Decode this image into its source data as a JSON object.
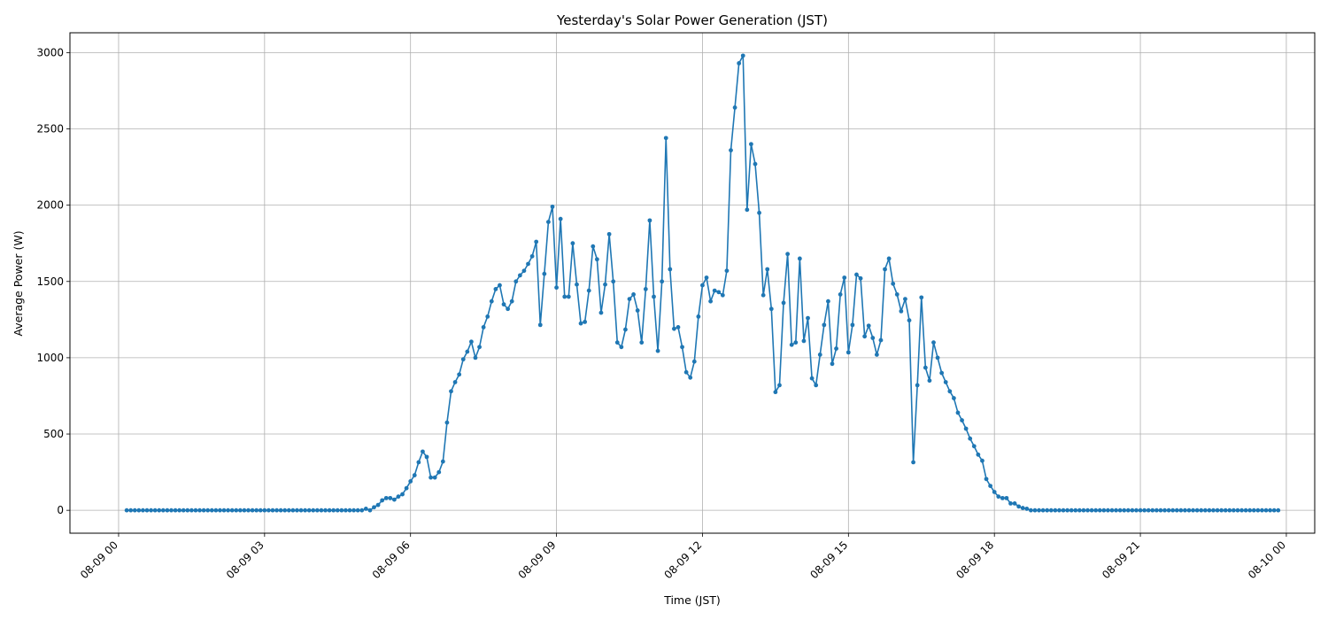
{
  "chart_data": {
    "type": "line",
    "title": "Yesterday's Solar Power Generation (JST)",
    "xlabel": "Time (JST)",
    "ylabel": "Average Power (W)",
    "x_start": "08-09 00:10",
    "x_interval_minutes": 5,
    "x_tick_labels": [
      "08-09 00",
      "08-09 03",
      "08-09 06",
      "08-09 09",
      "08-09 12",
      "08-09 15",
      "08-09 18",
      "08-09 21",
      "08-10 00"
    ],
    "y_ticks": [
      0,
      500,
      1000,
      1500,
      2000,
      2500,
      3000
    ],
    "xlim": [
      "08-08 23:00",
      "08-10 00:35"
    ],
    "ylim": [
      -150,
      3130
    ],
    "grid": true,
    "color": "#1f77b4",
    "series": [
      {
        "values": [
          0,
          0,
          0,
          0,
          0,
          0,
          0,
          0,
          0,
          0,
          0,
          0,
          0,
          0,
          0,
          0,
          0,
          0,
          0,
          0,
          0,
          0,
          0,
          0,
          0,
          0,
          0,
          0,
          0,
          0,
          0,
          0,
          0,
          0,
          0,
          0,
          0,
          0,
          0,
          0,
          0,
          0,
          0,
          0,
          0,
          0,
          0,
          0,
          0,
          0,
          0,
          0,
          0,
          0,
          0,
          0,
          0,
          0,
          0,
          10,
          0,
          20,
          35,
          65,
          80,
          80,
          70,
          90,
          105,
          145,
          190,
          230,
          315,
          385,
          350,
          215,
          215,
          250,
          320,
          575,
          780,
          840,
          890,
          990,
          1040,
          1105,
          1000,
          1070,
          1200,
          1270,
          1370,
          1450,
          1475,
          1350,
          1320,
          1370,
          1500,
          1540,
          1570,
          1615,
          1665,
          1760,
          1215,
          1550,
          1890,
          1990,
          1460,
          1910,
          1400,
          1400,
          1750,
          1480,
          1225,
          1235,
          1440,
          1730,
          1645,
          1295,
          1480,
          1810,
          1500,
          1100,
          1070,
          1185,
          1385,
          1415,
          1310,
          1100,
          1450,
          1900,
          1400,
          1045,
          1500,
          2440,
          1580,
          1190,
          1200,
          1070,
          905,
          870,
          975,
          1270,
          1475,
          1525,
          1370,
          1440,
          1430,
          1410,
          1570,
          2360,
          2640,
          2930,
          2980,
          1970,
          2400,
          2270,
          1950,
          1410,
          1580,
          1320,
          775,
          820,
          1360,
          1680,
          1085,
          1100,
          1650,
          1110,
          1260,
          865,
          820,
          1020,
          1215,
          1370,
          960,
          1060,
          1415,
          1525,
          1035,
          1215,
          1545,
          1520,
          1140,
          1210,
          1130,
          1020,
          1115,
          1580,
          1650,
          1485,
          1415,
          1305,
          1385,
          1245,
          315,
          820,
          1395,
          935,
          850,
          1100,
          1000,
          900,
          840,
          780,
          735,
          640,
          590,
          535,
          470,
          420,
          365,
          325,
          205,
          160,
          120,
          90,
          80,
          80,
          45,
          45,
          25,
          15,
          10,
          0,
          0,
          0,
          0,
          0,
          0,
          0,
          0,
          0,
          0,
          0,
          0,
          0,
          0,
          0,
          0,
          0,
          0,
          0,
          0,
          0,
          0,
          0,
          0,
          0,
          0,
          0,
          0,
          0,
          0,
          0,
          0,
          0,
          0,
          0,
          0,
          0,
          0,
          0,
          0,
          0,
          0,
          0,
          0,
          0,
          0,
          0,
          0,
          0,
          0,
          0,
          0,
          0,
          0,
          0,
          0,
          0,
          0,
          0,
          0,
          0,
          0
        ]
      }
    ]
  }
}
